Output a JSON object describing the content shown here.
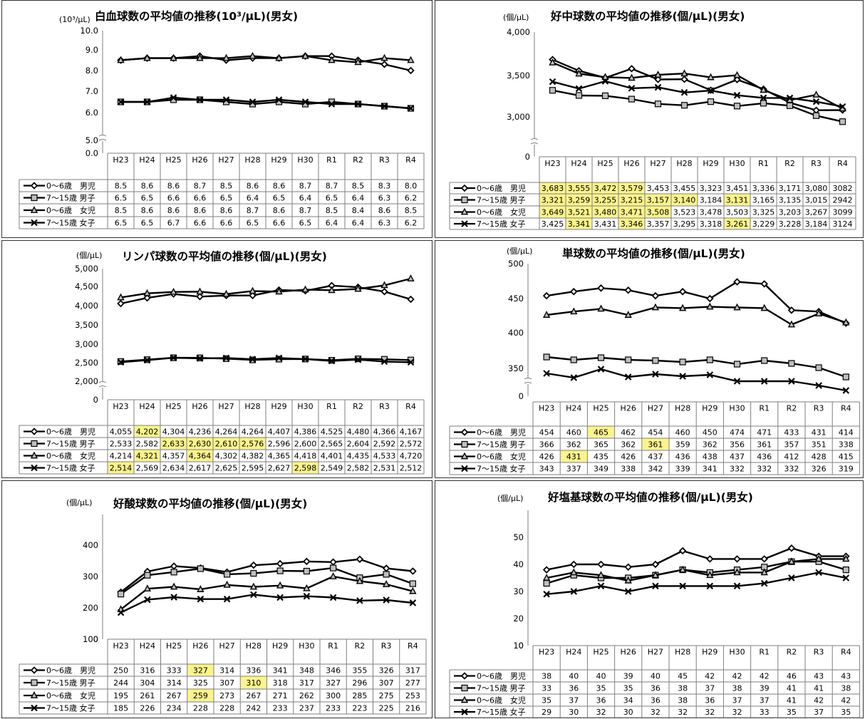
{
  "colors": {
    "line": "#000000",
    "grid": "#7f7f7f",
    "highlight": "#fbf48c",
    "marker_gray": "#bfbfbf",
    "border": "#333333"
  },
  "chart_data": [
    {
      "type": "line",
      "title": "白血球数の平均値の推移(10³/μL)(男女)",
      "unit_label": "(10³/μL)",
      "categories": [
        "H23",
        "H24",
        "H25",
        "H26",
        "H27",
        "H28",
        "H29",
        "H30",
        "R1",
        "R2",
        "R3",
        "R4"
      ],
      "ylim": [
        0,
        10
      ],
      "yticks": [
        "0.0",
        "5.0",
        "6.0",
        "7.0",
        "8.0",
        "9.0",
        "10.0"
      ],
      "axis_break": true,
      "series": [
        {
          "name": "0～6歳　男児",
          "marker": "diamond",
          "values": [
            8.5,
            8.6,
            8.6,
            8.7,
            8.5,
            8.6,
            8.6,
            8.7,
            8.7,
            8.5,
            8.3,
            8.0
          ],
          "labels": [
            "8.5",
            "8.6",
            "8.6",
            "8.7",
            "8.5",
            "8.6",
            "8.6",
            "8.7",
            "8.7",
            "8.5",
            "8.3",
            "8.0"
          ],
          "highlight": []
        },
        {
          "name": "7～15歳 男子",
          "marker": "square",
          "values": [
            6.5,
            6.5,
            6.6,
            6.6,
            6.5,
            6.4,
            6.5,
            6.4,
            6.5,
            6.4,
            6.3,
            6.2
          ],
          "labels": [
            "6.5",
            "6.5",
            "6.6",
            "6.6",
            "6.5",
            "6.4",
            "6.5",
            "6.4",
            "6.5",
            "6.4",
            "6.3",
            "6.2"
          ],
          "highlight": []
        },
        {
          "name": "0～6歳　女児",
          "marker": "triangle",
          "values": [
            8.5,
            8.6,
            8.6,
            8.6,
            8.6,
            8.7,
            8.6,
            8.7,
            8.5,
            8.4,
            8.6,
            8.5
          ],
          "labels": [
            "8.5",
            "8.6",
            "8.6",
            "8.6",
            "8.6",
            "8.7",
            "8.6",
            "8.7",
            "8.5",
            "8.4",
            "8.6",
            "8.5"
          ],
          "highlight": []
        },
        {
          "name": "7～15歳 女子",
          "marker": "x",
          "values": [
            6.5,
            6.5,
            6.7,
            6.6,
            6.6,
            6.5,
            6.6,
            6.5,
            6.4,
            6.4,
            6.3,
            6.2
          ],
          "labels": [
            "6.5",
            "6.5",
            "6.7",
            "6.6",
            "6.6",
            "6.5",
            "6.6",
            "6.5",
            "6.4",
            "6.4",
            "6.3",
            "6.2"
          ],
          "highlight": []
        }
      ]
    },
    {
      "type": "line",
      "title": "好中球数の平均値の推移(個/μL)(男女)",
      "unit_label": "(個/μL)",
      "categories": [
        "H23",
        "H24",
        "H25",
        "H26",
        "H27",
        "H28",
        "H29",
        "H30",
        "R1",
        "R2",
        "R3",
        "R4"
      ],
      "ylim": [
        0,
        4000
      ],
      "yticks": [
        "0",
        "3,000",
        "3,500",
        "4,000"
      ],
      "axis_break": true,
      "series": [
        {
          "name": "0～6歳　男児",
          "marker": "diamond",
          "values": [
            3683,
            3555,
            3472,
            3579,
            3453,
            3455,
            3323,
            3451,
            3336,
            3171,
            3080,
            3082
          ],
          "labels": [
            "3,683",
            "3,555",
            "3,472",
            "3,579",
            "3,453",
            "3,455",
            "3,323",
            "3,451",
            "3,336",
            "3,171",
            "3,080",
            "3082"
          ],
          "highlight": [
            0,
            1,
            2,
            3
          ]
        },
        {
          "name": "7～15歳 男子",
          "marker": "square",
          "values": [
            3321,
            3259,
            3255,
            3215,
            3157,
            3140,
            3184,
            3131,
            3165,
            3135,
            3015,
            2942
          ],
          "labels": [
            "3,321",
            "3,259",
            "3,255",
            "3,215",
            "3,157",
            "3,140",
            "3,184",
            "3,131",
            "3,165",
            "3,135",
            "3,015",
            "2942"
          ],
          "highlight": [
            0,
            1,
            2,
            3,
            4,
            5,
            7
          ]
        },
        {
          "name": "0～6歳　女児",
          "marker": "triangle",
          "values": [
            3649,
            3521,
            3480,
            3471,
            3508,
            3523,
            3478,
            3503,
            3325,
            3203,
            3267,
            3099
          ],
          "labels": [
            "3,649",
            "3,521",
            "3,480",
            "3,471",
            "3,508",
            "3,523",
            "3,478",
            "3,503",
            "3,325",
            "3,203",
            "3,267",
            "3099"
          ],
          "highlight": [
            0,
            1,
            2,
            3,
            4
          ]
        },
        {
          "name": "7～15歳 女子",
          "marker": "x",
          "values": [
            3425,
            3341,
            3431,
            3346,
            3357,
            3295,
            3318,
            3261,
            3229,
            3228,
            3184,
            3124
          ],
          "labels": [
            "3,425",
            "3,341",
            "3,431",
            "3,346",
            "3,357",
            "3,295",
            "3,318",
            "3,261",
            "3,229",
            "3,228",
            "3,184",
            "3124"
          ],
          "highlight": [
            1,
            3,
            7
          ]
        }
      ]
    },
    {
      "type": "line",
      "title": "リンパ球数の平均値の推移(個/μL)(男女)",
      "unit_label": "(個/μL)",
      "categories": [
        "H23",
        "H24",
        "H25",
        "H26",
        "H27",
        "H28",
        "H29",
        "H30",
        "R1",
        "R2",
        "R3",
        "R4"
      ],
      "ylim": [
        0,
        5000
      ],
      "yticks": [
        "0",
        "2,000",
        "2,500",
        "3,000",
        "3,500",
        "4,000",
        "4,500",
        "5,000"
      ],
      "axis_break": true,
      "series": [
        {
          "name": "0～6歳　男児",
          "marker": "diamond",
          "values": [
            4055,
            4202,
            4304,
            4236,
            4264,
            4264,
            4407,
            4386,
            4525,
            4480,
            4366,
            4167
          ],
          "labels": [
            "4,055",
            "4,202",
            "4,304",
            "4,236",
            "4,264",
            "4,264",
            "4,407",
            "4,386",
            "4,525",
            "4,480",
            "4,366",
            "4,167"
          ],
          "highlight": [
            1
          ]
        },
        {
          "name": "7～15歳 男子",
          "marker": "square",
          "values": [
            2533,
            2582,
            2633,
            2630,
            2610,
            2576,
            2596,
            2600,
            2565,
            2604,
            2592,
            2572
          ],
          "labels": [
            "2,533",
            "2,582",
            "2,633",
            "2,630",
            "2,610",
            "2,576",
            "2,596",
            "2,600",
            "2,565",
            "2,604",
            "2,592",
            "2,572"
          ],
          "highlight": [
            2,
            3,
            4,
            5
          ]
        },
        {
          "name": "0～6歳　女児",
          "marker": "triangle",
          "values": [
            4214,
            4321,
            4357,
            4364,
            4302,
            4382,
            4365,
            4418,
            4401,
            4435,
            4533,
            4720
          ],
          "labels": [
            "4,214",
            "4,321",
            "4,357",
            "4,364",
            "4,302",
            "4,382",
            "4,365",
            "4,418",
            "4,401",
            "4,435",
            "4,533",
            "4,720"
          ],
          "highlight": [
            1,
            3
          ]
        },
        {
          "name": "7～15歳 女子",
          "marker": "x",
          "values": [
            2514,
            2569,
            2634,
            2617,
            2625,
            2595,
            2627,
            2598,
            2549,
            2582,
            2531,
            2512
          ],
          "labels": [
            "2,514",
            "2,569",
            "2,634",
            "2,617",
            "2,625",
            "2,595",
            "2,627",
            "2,598",
            "2,549",
            "2,582",
            "2,531",
            "2,512"
          ],
          "highlight": [
            0,
            7
          ]
        }
      ]
    },
    {
      "type": "line",
      "title": "単球数の平均値の推移(個/μL)(男女)",
      "unit_label": "(個/μL)",
      "categories": [
        "H23",
        "H24",
        "H25",
        "H26",
        "H27",
        "H28",
        "H29",
        "H30",
        "R1",
        "R2",
        "R3",
        "R4"
      ],
      "ylim": [
        0,
        500
      ],
      "yticks": [
        "0",
        "350",
        "400",
        "450",
        "500"
      ],
      "axis_break": true,
      "series": [
        {
          "name": "0～6歳　男児",
          "marker": "diamond",
          "values": [
            454,
            460,
            465,
            462,
            454,
            460,
            450,
            474,
            471,
            433,
            431,
            414
          ],
          "labels": [
            "454",
            "460",
            "465",
            "462",
            "454",
            "460",
            "450",
            "474",
            "471",
            "433",
            "431",
            "414"
          ],
          "highlight": [
            2
          ]
        },
        {
          "name": "7～15歳 男子",
          "marker": "square",
          "values": [
            366,
            362,
            365,
            362,
            361,
            359,
            362,
            356,
            361,
            357,
            351,
            338
          ],
          "labels": [
            "366",
            "362",
            "365",
            "362",
            "361",
            "359",
            "362",
            "356",
            "361",
            "357",
            "351",
            "338"
          ],
          "highlight": [
            4
          ]
        },
        {
          "name": "0～6歳　女児",
          "marker": "triangle",
          "values": [
            426,
            431,
            435,
            426,
            437,
            436,
            438,
            437,
            436,
            412,
            428,
            415
          ],
          "labels": [
            "426",
            "431",
            "435",
            "426",
            "437",
            "436",
            "438",
            "437",
            "436",
            "412",
            "428",
            "415"
          ],
          "highlight": [
            1
          ]
        },
        {
          "name": "7～15歳 女子",
          "marker": "x",
          "values": [
            343,
            337,
            349,
            338,
            342,
            339,
            341,
            332,
            332,
            332,
            326,
            319
          ],
          "labels": [
            "343",
            "337",
            "349",
            "338",
            "342",
            "339",
            "341",
            "332",
            "332",
            "332",
            "326",
            "319"
          ],
          "highlight": []
        }
      ]
    },
    {
      "type": "line",
      "title": "好酸球数の平均値の推移(個/μL)(男女)",
      "unit_label": "(個/μL)",
      "categories": [
        "H23",
        "H24",
        "H25",
        "H26",
        "H27",
        "H28",
        "H29",
        "H30",
        "R1",
        "R2",
        "R3",
        "R4"
      ],
      "ylim": [
        0,
        400
      ],
      "yticks": [
        "0",
        "100",
        "200",
        "300",
        "400"
      ],
      "axis_break": false,
      "series": [
        {
          "name": "0～6歳　男児",
          "marker": "diamond",
          "values": [
            250,
            316,
            333,
            327,
            314,
            336,
            341,
            348,
            346,
            355,
            326,
            317
          ],
          "labels": [
            "250",
            "316",
            "333",
            "327",
            "314",
            "336",
            "341",
            "348",
            "346",
            "355",
            "326",
            "317"
          ],
          "highlight": [
            3
          ]
        },
        {
          "name": "7～15歳 男子",
          "marker": "square",
          "values": [
            244,
            304,
            314,
            325,
            307,
            310,
            318,
            317,
            327,
            296,
            307,
            277
          ],
          "labels": [
            "244",
            "304",
            "314",
            "325",
            "307",
            "310",
            "318",
            "317",
            "327",
            "296",
            "307",
            "277"
          ],
          "highlight": [
            5
          ]
        },
        {
          "name": "0～6歳　女児",
          "marker": "triangle",
          "values": [
            195,
            261,
            267,
            259,
            273,
            267,
            271,
            262,
            300,
            285,
            275,
            253
          ],
          "labels": [
            "195",
            "261",
            "267",
            "259",
            "273",
            "267",
            "271",
            "262",
            "300",
            "285",
            "275",
            "253"
          ],
          "highlight": [
            3
          ]
        },
        {
          "name": "7～15歳 女子",
          "marker": "x",
          "values": [
            185,
            226,
            234,
            228,
            228,
            242,
            233,
            237,
            233,
            223,
            225,
            216
          ],
          "labels": [
            "185",
            "226",
            "234",
            "228",
            "228",
            "242",
            "233",
            "237",
            "233",
            "223",
            "225",
            "216"
          ],
          "highlight": []
        }
      ]
    },
    {
      "type": "line",
      "title": "好塩基球数の平均値の推移(個/μL)(男女)",
      "unit_label": "(個/μL)",
      "categories": [
        "H23",
        "H24",
        "H25",
        "H26",
        "H27",
        "H28",
        "H29",
        "H30",
        "R1",
        "R2",
        "R3",
        "R4"
      ],
      "ylim": [
        0,
        50
      ],
      "yticks": [
        "0",
        "10",
        "20",
        "30",
        "40",
        "50"
      ],
      "axis_break": false,
      "series": [
        {
          "name": "0～6歳　男児",
          "marker": "diamond",
          "values": [
            38,
            40,
            40,
            39,
            40,
            45,
            42,
            42,
            42,
            46,
            43,
            43
          ],
          "labels": [
            "38",
            "40",
            "40",
            "39",
            "40",
            "45",
            "42",
            "42",
            "42",
            "46",
            "43",
            "43"
          ],
          "highlight": []
        },
        {
          "name": "7～15歳 男子",
          "marker": "square",
          "values": [
            33,
            36,
            35,
            35,
            36,
            38,
            37,
            38,
            39,
            41,
            41,
            38
          ],
          "labels": [
            "33",
            "36",
            "35",
            "35",
            "36",
            "38",
            "37",
            "38",
            "39",
            "41",
            "41",
            "38"
          ],
          "highlight": []
        },
        {
          "name": "0～6歳　女児",
          "marker": "triangle",
          "values": [
            35,
            37,
            36,
            34,
            36,
            38,
            36,
            37,
            37,
            41,
            42,
            42
          ],
          "labels": [
            "35",
            "37",
            "36",
            "34",
            "36",
            "38",
            "36",
            "37",
            "37",
            "41",
            "42",
            "42"
          ],
          "highlight": []
        },
        {
          "name": "7～15歳 女子",
          "marker": "x",
          "values": [
            29,
            30,
            32,
            30,
            32,
            32,
            32,
            32,
            33,
            35,
            37,
            35
          ],
          "labels": [
            "29",
            "30",
            "32",
            "30",
            "32",
            "32",
            "32",
            "32",
            "33",
            "35",
            "37",
            "35"
          ],
          "highlight": []
        }
      ]
    }
  ]
}
